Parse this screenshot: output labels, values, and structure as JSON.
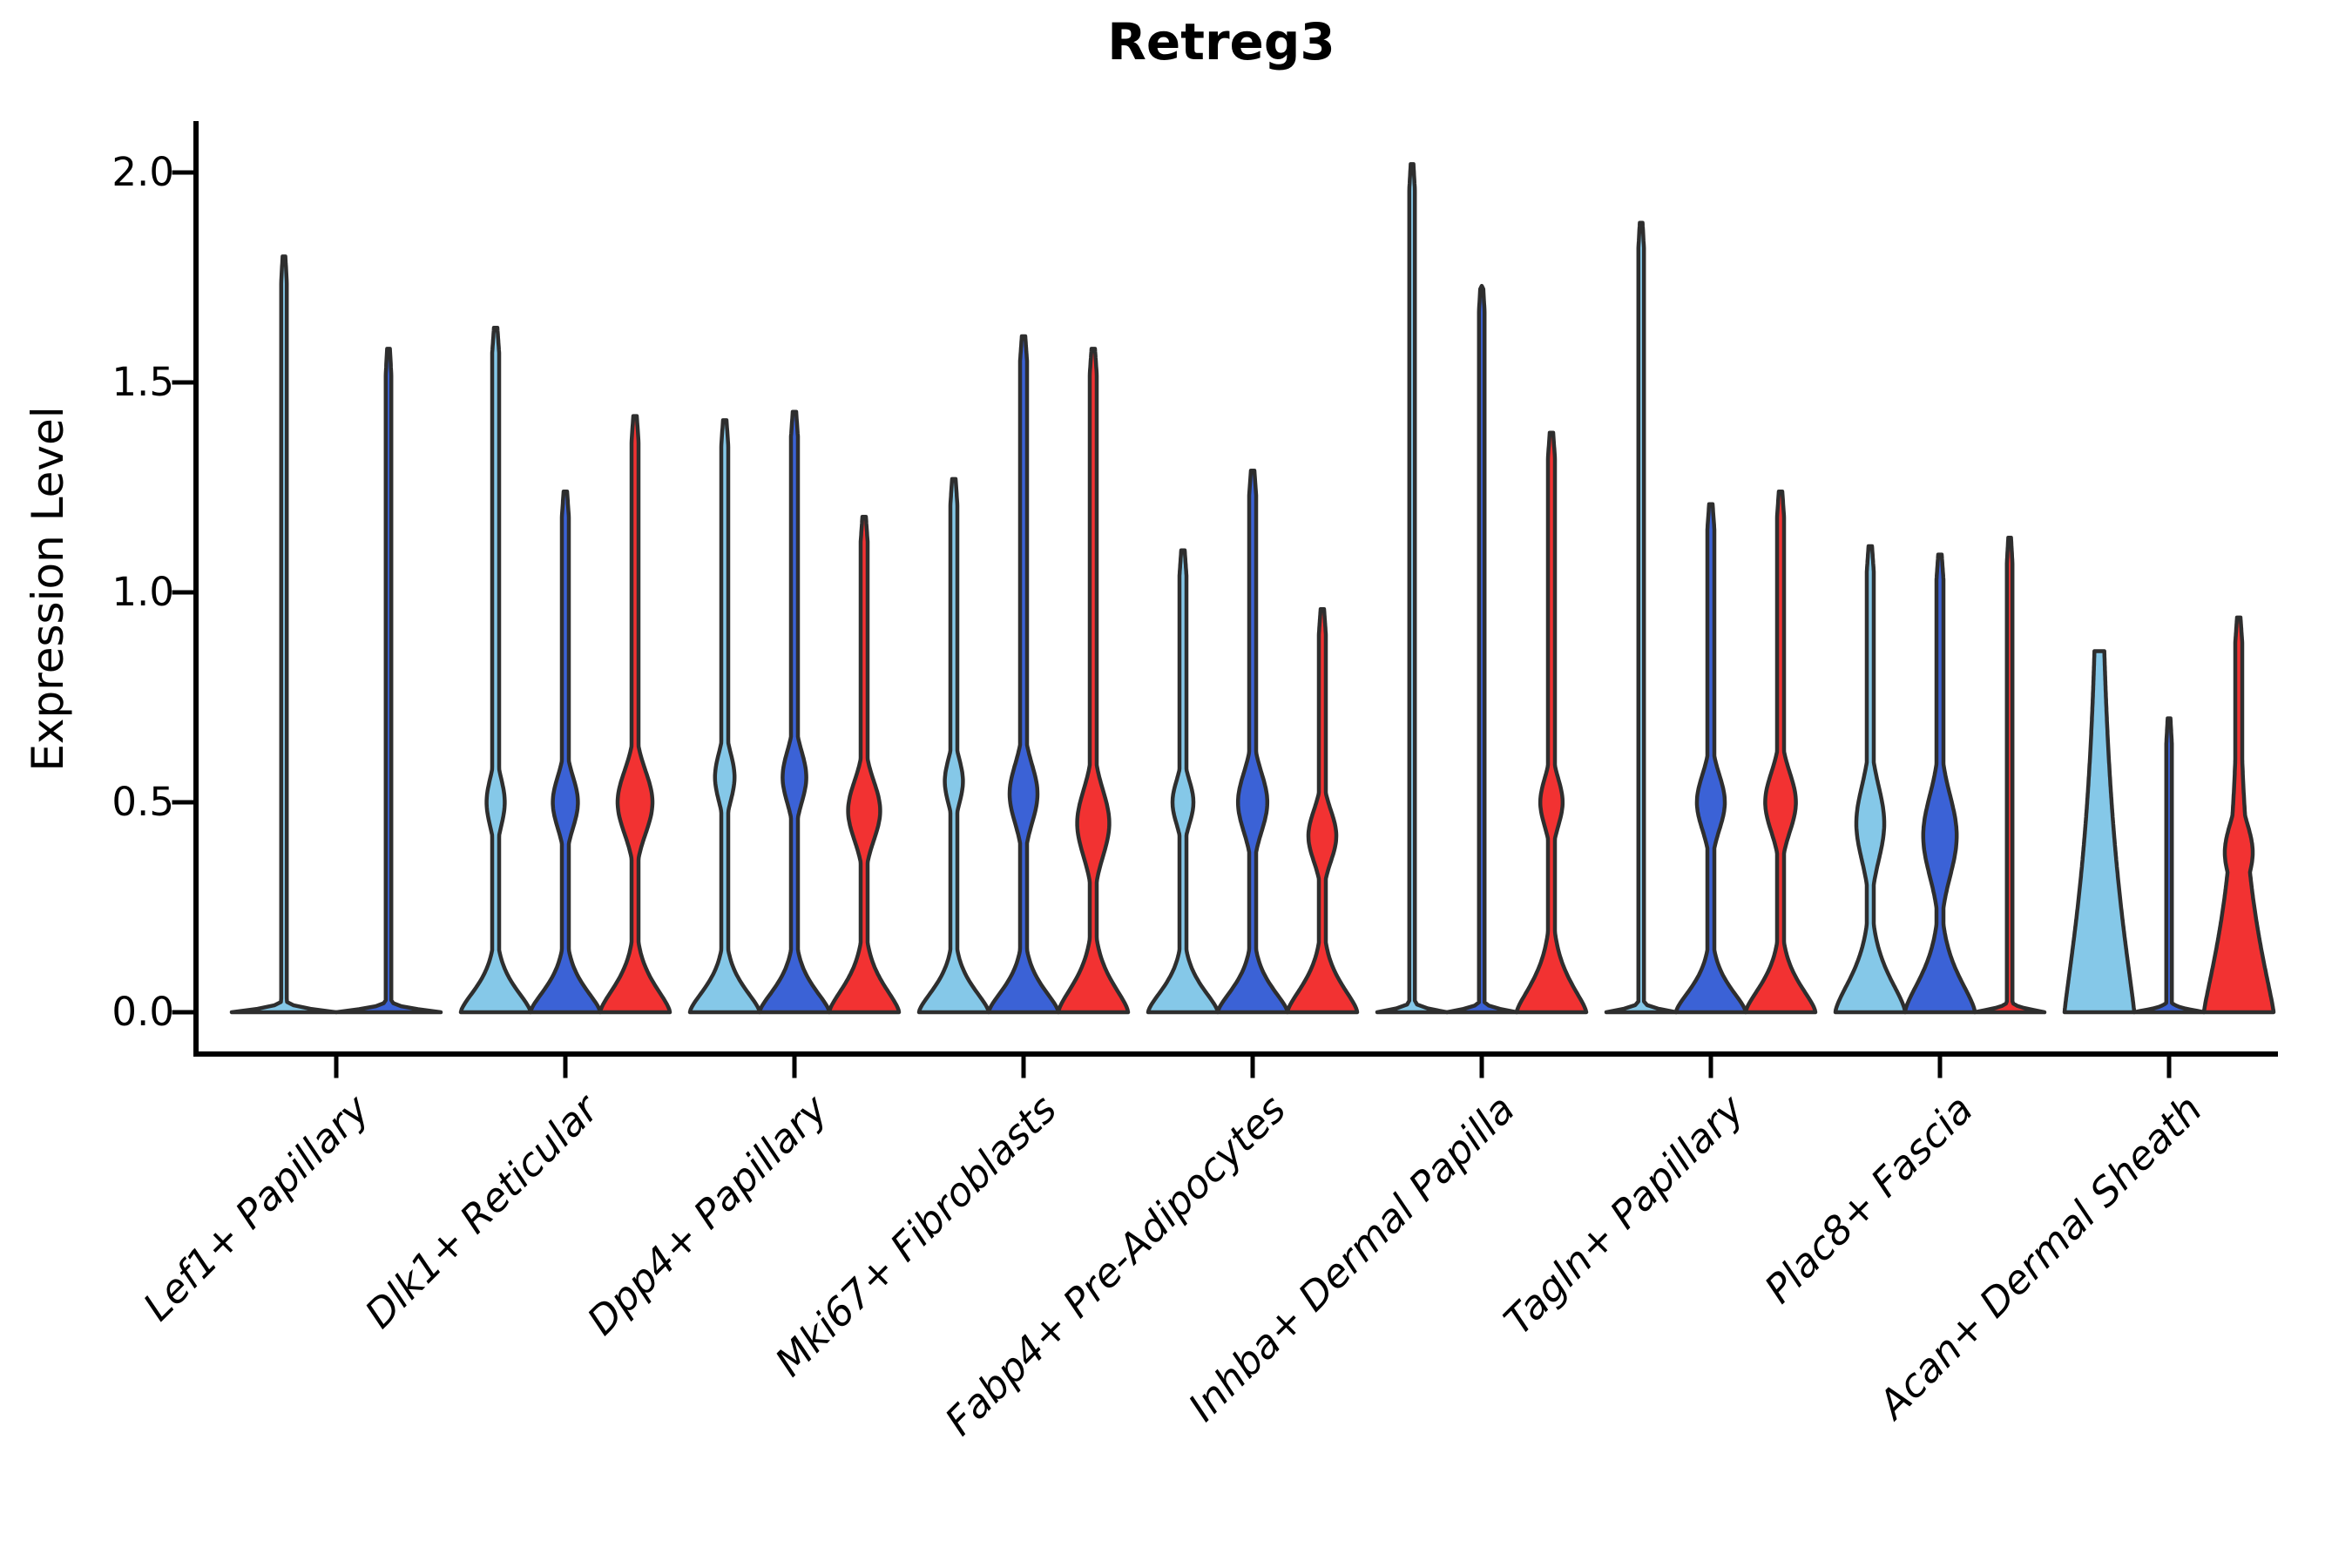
{
  "title": "Retreg3",
  "y_axis": {
    "label": "Expression Level",
    "ticks": [
      "2.0",
      "1.5",
      "1.0",
      "0.5",
      "0.0"
    ],
    "tick_values": [
      2.0,
      1.5,
      1.0,
      0.5,
      0.0
    ]
  },
  "colors": {
    "light_blue": "#85C8E8",
    "dark_blue": "#3B62D6",
    "red": "#F23232",
    "outline": "#2E2E2E",
    "axis": "#000000"
  },
  "chart_data": {
    "type": "violin",
    "title": "Retreg3",
    "xlabel": "",
    "ylabel": "Expression Level",
    "ylim": [
      -0.1,
      2.12
    ],
    "grid": false,
    "legend": "none",
    "series_colors": [
      "light_blue",
      "dark_blue",
      "red"
    ],
    "categories": [
      "Lef1+ Papillary",
      "Dlk1+ Reticular",
      "Dpp4+ Papillary",
      "Mki67+ Fibroblasts",
      "Fabp4+ Pre-Adipocytes",
      "Inhba+ Dermal Papilla",
      "Tagln+ Papillary",
      "Plac8+ Fascia",
      "Acan+ Dermal Sheath"
    ],
    "groups": [
      {
        "label": "Lef1+ Papillary",
        "violins": [
          {
            "color": "light_blue",
            "shape": "spike",
            "max": 1.8
          },
          {
            "color": "dark_blue",
            "shape": "spike",
            "max": 1.58
          }
        ]
      },
      {
        "label": "Dlk1+ Reticular",
        "violins": [
          {
            "color": "light_blue",
            "shape": "body",
            "max": 1.63,
            "lens": [
              0.5,
              0.13,
              0.26
            ]
          },
          {
            "color": "dark_blue",
            "shape": "body",
            "max": 1.24,
            "lens": [
              0.5,
              0.14,
              0.36
            ]
          },
          {
            "color": "red",
            "shape": "body",
            "max": 1.42,
            "lens": [
              0.5,
              0.17,
              0.5
            ],
            "fs": 0.095
          }
        ]
      },
      {
        "label": "Dpp4+ Papillary",
        "violins": [
          {
            "color": "light_blue",
            "shape": "body",
            "max": 1.41,
            "lens": [
              0.56,
              0.13,
              0.28
            ]
          },
          {
            "color": "dark_blue",
            "shape": "body",
            "max": 1.43,
            "lens": [
              0.56,
              0.14,
              0.34
            ]
          },
          {
            "color": "red",
            "shape": "body",
            "max": 1.18,
            "lens": [
              0.48,
              0.16,
              0.46
            ],
            "fs": 0.095
          }
        ]
      },
      {
        "label": "Mki67+ Fibroblasts",
        "violins": [
          {
            "color": "light_blue",
            "shape": "body",
            "max": 1.27,
            "lens": [
              0.55,
              0.12,
              0.26
            ]
          },
          {
            "color": "dark_blue",
            "shape": "body",
            "max": 1.61,
            "lens": [
              0.52,
              0.16,
              0.4
            ]
          },
          {
            "color": "red",
            "shape": "body",
            "max": 1.58,
            "lens": [
              0.45,
              0.18,
              0.46
            ],
            "fs": 0.1
          }
        ]
      },
      {
        "label": "Fabp4+ Pre-Adipocytes",
        "violins": [
          {
            "color": "light_blue",
            "shape": "body",
            "max": 1.1,
            "lens": [
              0.5,
              0.12,
              0.3
            ]
          },
          {
            "color": "dark_blue",
            "shape": "body",
            "max": 1.29,
            "lens": [
              0.5,
              0.16,
              0.42
            ]
          },
          {
            "color": "red",
            "shape": "body",
            "max": 0.96,
            "lens": [
              0.42,
              0.14,
              0.4
            ],
            "fs": 0.095
          }
        ]
      },
      {
        "label": "Inhba+ Dermal Papilla",
        "violins": [
          {
            "color": "light_blue",
            "shape": "spike",
            "max": 2.02
          },
          {
            "color": "dark_blue",
            "shape": "spike",
            "max": 1.73
          },
          {
            "color": "red",
            "shape": "body",
            "max": 1.38,
            "lens": [
              0.5,
              0.13,
              0.32
            ],
            "fs": 0.105,
            "fe": 1.4
          }
        ]
      },
      {
        "label": "Tagln+ Papillary",
        "violins": [
          {
            "color": "light_blue",
            "shape": "spike",
            "max": 1.88
          },
          {
            "color": "dark_blue",
            "shape": "body",
            "max": 1.21,
            "lens": [
              0.5,
              0.15,
              0.4
            ]
          },
          {
            "color": "red",
            "shape": "body",
            "max": 1.24,
            "lens": [
              0.5,
              0.16,
              0.44
            ],
            "fs": 0.095
          }
        ]
      },
      {
        "label": "Plac8+ Fascia",
        "violins": [
          {
            "color": "light_blue",
            "shape": "body",
            "max": 1.11,
            "lens": [
              0.45,
              0.2,
              0.4
            ],
            "fs": 0.12
          },
          {
            "color": "dark_blue",
            "shape": "body",
            "max": 1.09,
            "lens": [
              0.42,
              0.22,
              0.48
            ],
            "fs": 0.12
          },
          {
            "color": "red",
            "shape": "spike",
            "max": 1.13
          }
        ]
      },
      {
        "label": "Acan+ Dermal Sheath",
        "violins": [
          {
            "color": "light_blue",
            "shape": "cone",
            "max": 0.86,
            "fs": 0.48,
            "fe": 1.15
          },
          {
            "color": "dark_blue",
            "shape": "spike",
            "max": 0.7
          },
          {
            "color": "red",
            "shape": "cone",
            "max": 0.94,
            "fs": 0.3,
            "fe": 1.2,
            "lens": [
              0.38,
              0.16,
              0.4
            ]
          }
        ]
      }
    ]
  }
}
